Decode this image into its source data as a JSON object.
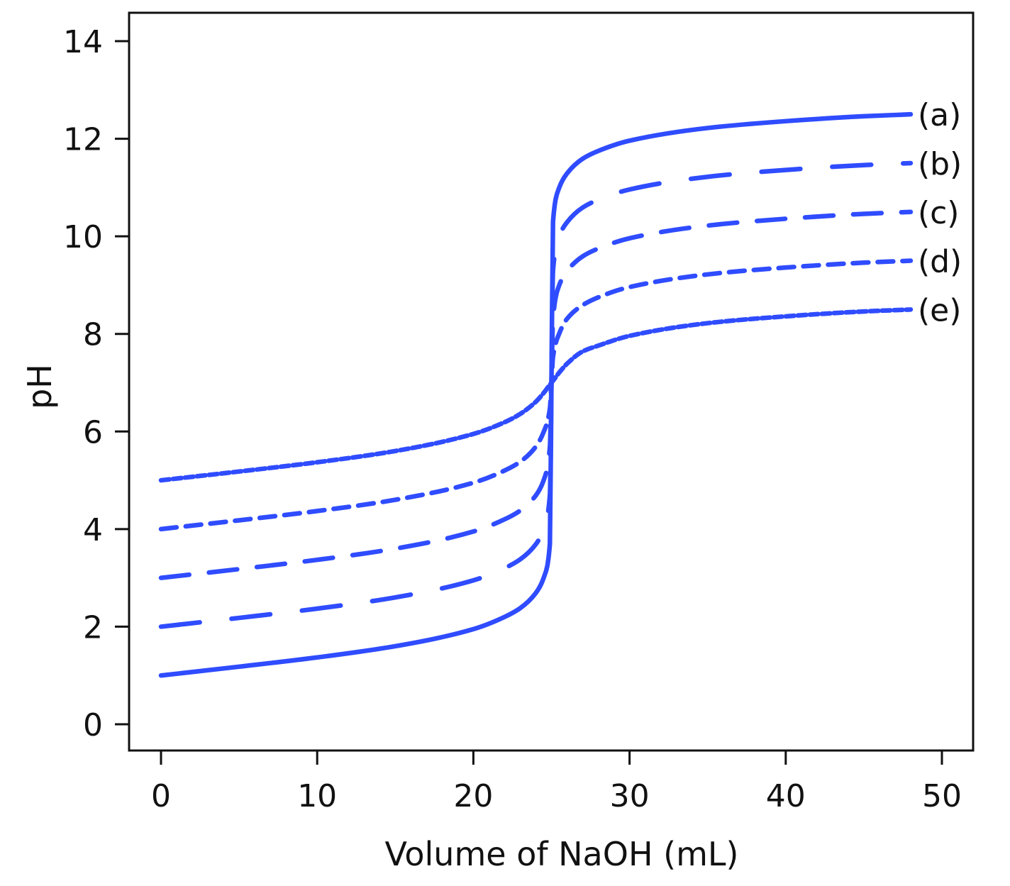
{
  "chart_data": {
    "type": "line",
    "title": "",
    "xlabel": "Volume of NaOH (mL)",
    "ylabel": "pH",
    "xlim": [
      -2,
      52
    ],
    "ylim": [
      -0.55,
      15.1
    ],
    "xticks": [
      0,
      10,
      20,
      30,
      40,
      50
    ],
    "yticks": [
      0,
      2,
      4,
      6,
      8,
      10,
      12,
      14
    ],
    "grid": false,
    "color": "#2f4cff",
    "x": [
      0,
      5,
      10,
      15,
      20,
      22,
      23,
      24,
      24.5,
      24.9,
      25,
      25.1,
      25.5,
      26,
      27,
      28,
      30,
      35,
      40,
      45,
      48
    ],
    "series": [
      {
        "name": "(a)",
        "style": "solid",
        "values": [
          1,
          1.18,
          1.37,
          1.6,
          1.95,
          2.2,
          2.38,
          2.69,
          3.0,
          3.7,
          7,
          10.3,
          11.0,
          11.29,
          11.59,
          11.75,
          11.96,
          12.22,
          12.36,
          12.46,
          12.5
        ]
      },
      {
        "name": "(b)",
        "style": "long-dash",
        "values": [
          2,
          2.18,
          2.37,
          2.6,
          2.95,
          3.2,
          3.38,
          3.69,
          4.0,
          4.7,
          7,
          9.3,
          10.0,
          10.29,
          10.59,
          10.75,
          10.96,
          11.22,
          11.36,
          11.46,
          11.5
        ]
      },
      {
        "name": "(c)",
        "style": "dash",
        "values": [
          3,
          3.18,
          3.37,
          3.6,
          3.95,
          4.2,
          4.38,
          4.69,
          5.0,
          5.68,
          7,
          8.32,
          9.0,
          9.29,
          9.59,
          9.75,
          9.96,
          10.22,
          10.36,
          10.46,
          10.5
        ]
      },
      {
        "name": "(d)",
        "style": "short-dash",
        "values": [
          4,
          4.18,
          4.37,
          4.6,
          4.95,
          5.2,
          5.38,
          5.69,
          5.99,
          6.47,
          7,
          7.53,
          8.01,
          8.31,
          8.59,
          8.75,
          8.96,
          9.22,
          9.36,
          9.46,
          9.5
        ]
      },
      {
        "name": "(e)",
        "style": "dotted",
        "values": [
          5,
          5.18,
          5.37,
          5.6,
          5.95,
          6.19,
          6.36,
          6.61,
          6.79,
          6.96,
          7,
          7.04,
          7.21,
          7.39,
          7.64,
          7.76,
          7.96,
          8.22,
          8.36,
          8.46,
          8.5
        ]
      }
    ]
  }
}
